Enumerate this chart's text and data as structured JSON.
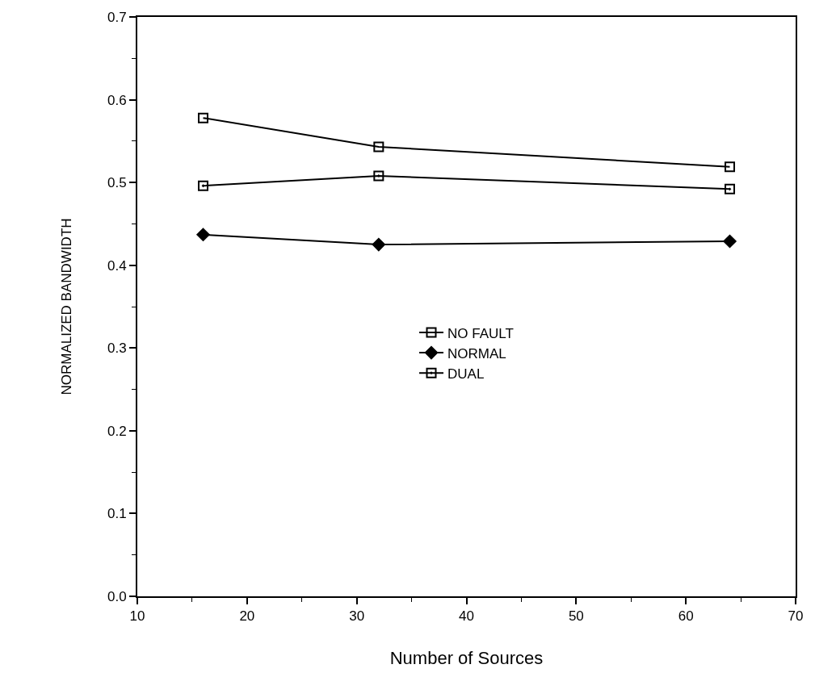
{
  "chart_data": {
    "type": "line",
    "xlabel": "Number of Sources",
    "ylabel": "NORMALIZED BANDWIDTH",
    "x": [
      16,
      32,
      64
    ],
    "series": [
      {
        "name": "NO FAULT",
        "color": "#000000",
        "marker": "square",
        "values": [
          0.578,
          0.543,
          0.519
        ]
      },
      {
        "name": "NORMAL",
        "color": "#000000",
        "marker": "diamond",
        "values": [
          0.437,
          0.425,
          0.429
        ]
      },
      {
        "name": "DUAL",
        "color": "#000000",
        "marker": "square",
        "values": [
          0.496,
          0.508,
          0.492
        ]
      }
    ],
    "xlim": [
      10,
      70
    ],
    "xticks": [
      10,
      20,
      30,
      40,
      50,
      60,
      70
    ],
    "ylim": [
      0,
      0.7
    ],
    "yticks": [
      {
        "value": 0,
        "label": "0.0"
      },
      0.1,
      0.2,
      0.3,
      0.4,
      0.5,
      0.6,
      0.7
    ],
    "legend": "center",
    "line_style": "solid"
  }
}
